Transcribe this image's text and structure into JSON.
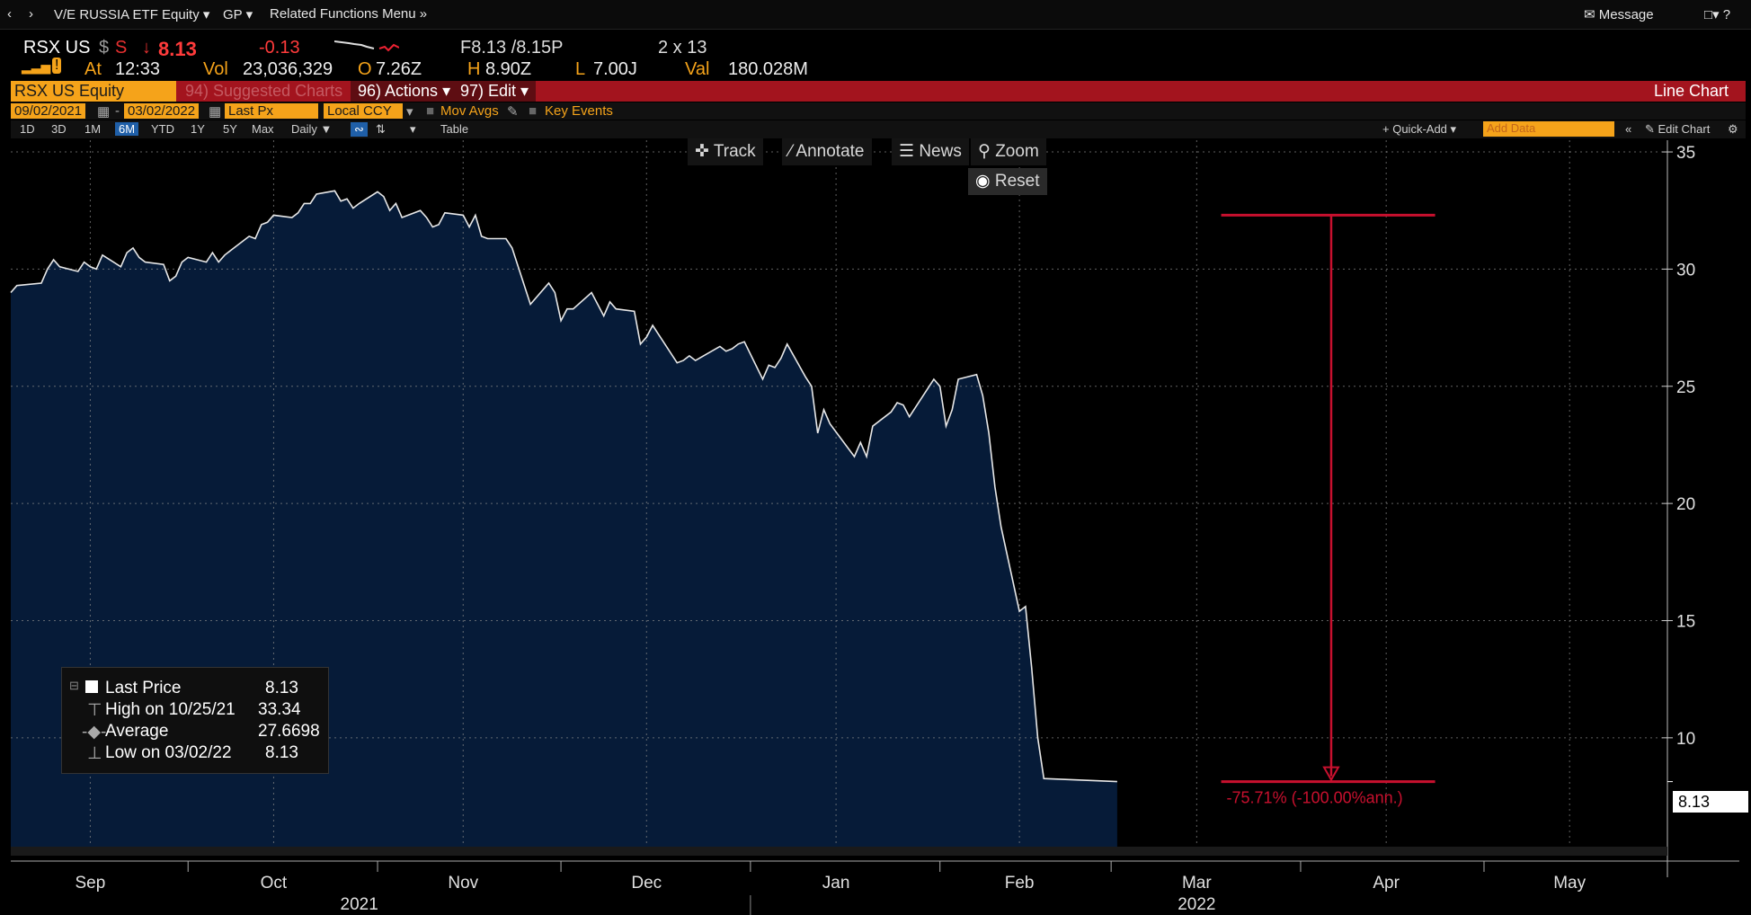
{
  "nav": {
    "back_icon": "chevron-left-icon",
    "forward_icon": "chevron-right-icon",
    "security_menu": "V/E RUSSIA ETF Equity",
    "function_menu": "GP",
    "related_menu": "Related Functions Menu",
    "message": "Message"
  },
  "quote": {
    "ticker": "RSX US",
    "currency": "$",
    "source": "S",
    "last": "8.13",
    "change": "-0.13",
    "bid_ask": "F8.13 /8.15P",
    "size": "2 x 13",
    "at_label": "At",
    "time": "12:33",
    "vol_label": "Vol",
    "volume": "23,036,329",
    "open_label": "O",
    "open": "7.26Z",
    "high_label": "H",
    "high": "8.90Z",
    "low_label": "L",
    "low": "7.00J",
    "val_label": "Val",
    "value": "180.028M"
  },
  "header": {
    "security": "RSX US Equity",
    "suggested": "94) Suggested Charts",
    "actions": "96) Actions",
    "edit": "97) Edit",
    "chart_type": "Line Chart"
  },
  "options": {
    "start_date": "09/02/2021",
    "end_date": "03/02/2022",
    "price_field": "Last Px",
    "currency": "Local CCY",
    "mov_avgs": "Mov Avgs",
    "key_events": "Key Events"
  },
  "range": {
    "buttons": [
      "1D",
      "3D",
      "1M",
      "6M",
      "YTD",
      "1Y",
      "5Y",
      "Max"
    ],
    "selected": "6M",
    "frequency": "Daily",
    "table": "Table",
    "quick_add": "Quick-Add",
    "add_data_placeholder": "Add Data",
    "edit_chart": "Edit Chart"
  },
  "toolbar": {
    "track": "Track",
    "annotate": "Annotate",
    "news": "News",
    "zoom": "Zoom",
    "reset": "Reset"
  },
  "legend": {
    "last_label": "Last Price",
    "last_value": "8.13",
    "high_label": "High on 10/25/21",
    "high_value": "33.34",
    "avg_label": "Average",
    "avg_value": "27.6698",
    "low_label": "Low on 03/02/22",
    "low_value": "8.13"
  },
  "measure_label": "-75.71% (-100.00%ann.)",
  "price_box": "8.13",
  "colors": {
    "fill": "#061b38",
    "line": "#e8e8e8",
    "measure": "#c8102e",
    "accent": "#f5a31a",
    "header": "#a3141e"
  },
  "chart_data": {
    "type": "area",
    "series": [
      {
        "name": "Last Price",
        "points": [
          [
            "2021-09-02",
            29.0
          ],
          [
            "2021-09-03",
            29.3
          ],
          [
            "2021-09-07",
            29.4
          ],
          [
            "2021-09-08",
            30.0
          ],
          [
            "2021-09-09",
            30.4
          ],
          [
            "2021-09-10",
            30.1
          ],
          [
            "2021-09-13",
            29.9
          ],
          [
            "2021-09-14",
            30.3
          ],
          [
            "2021-09-15",
            30.1
          ],
          [
            "2021-09-16",
            30.0
          ],
          [
            "2021-09-17",
            30.6
          ],
          [
            "2021-09-20",
            30.1
          ],
          [
            "2021-09-21",
            30.7
          ],
          [
            "2021-09-22",
            30.9
          ],
          [
            "2021-09-23",
            30.5
          ],
          [
            "2021-09-24",
            30.3
          ],
          [
            "2021-09-27",
            30.2
          ],
          [
            "2021-09-28",
            29.5
          ],
          [
            "2021-09-29",
            29.7
          ],
          [
            "2021-09-30",
            30.3
          ],
          [
            "2021-10-01",
            30.5
          ],
          [
            "2021-10-04",
            30.3
          ],
          [
            "2021-10-05",
            30.7
          ],
          [
            "2021-10-06",
            30.3
          ],
          [
            "2021-10-07",
            30.6
          ],
          [
            "2021-10-08",
            30.8
          ],
          [
            "2021-10-11",
            31.4
          ],
          [
            "2021-10-12",
            31.3
          ],
          [
            "2021-10-13",
            31.9
          ],
          [
            "2021-10-14",
            32.0
          ],
          [
            "2021-10-15",
            32.3
          ],
          [
            "2021-10-18",
            32.2
          ],
          [
            "2021-10-19",
            32.4
          ],
          [
            "2021-10-20",
            32.8
          ],
          [
            "2021-10-21",
            32.8
          ],
          [
            "2021-10-22",
            33.2
          ],
          [
            "2021-10-25",
            33.34
          ],
          [
            "2021-10-26",
            32.9
          ],
          [
            "2021-10-27",
            33.0
          ],
          [
            "2021-10-28",
            32.6
          ],
          [
            "2021-10-29",
            32.8
          ],
          [
            "2021-11-01",
            33.3
          ],
          [
            "2021-11-02",
            33.1
          ],
          [
            "2021-11-03",
            32.5
          ],
          [
            "2021-11-04",
            32.8
          ],
          [
            "2021-11-05",
            32.2
          ],
          [
            "2021-11-08",
            32.5
          ],
          [
            "2021-11-09",
            32.2
          ],
          [
            "2021-11-10",
            31.8
          ],
          [
            "2021-11-11",
            31.9
          ],
          [
            "2021-11-12",
            32.4
          ],
          [
            "2021-11-15",
            32.3
          ],
          [
            "2021-11-16",
            31.8
          ],
          [
            "2021-11-17",
            32.3
          ],
          [
            "2021-11-18",
            31.4
          ],
          [
            "2021-11-19",
            31.3
          ],
          [
            "2021-11-22",
            31.3
          ],
          [
            "2021-11-23",
            30.9
          ],
          [
            "2021-11-24",
            30.1
          ],
          [
            "2021-11-26",
            28.5
          ],
          [
            "2021-11-29",
            29.4
          ],
          [
            "2021-11-30",
            29.0
          ],
          [
            "2021-12-01",
            27.8
          ],
          [
            "2021-12-02",
            28.3
          ],
          [
            "2021-12-03",
            28.3
          ],
          [
            "2021-12-06",
            29.0
          ],
          [
            "2021-12-07",
            28.5
          ],
          [
            "2021-12-08",
            28.0
          ],
          [
            "2021-12-09",
            28.6
          ],
          [
            "2021-12-10",
            28.3
          ],
          [
            "2021-12-13",
            28.2
          ],
          [
            "2021-12-14",
            26.8
          ],
          [
            "2021-12-15",
            27.1
          ],
          [
            "2021-12-16",
            27.6
          ],
          [
            "2021-12-17",
            27.2
          ],
          [
            "2021-12-20",
            26.0
          ],
          [
            "2021-12-21",
            26.1
          ],
          [
            "2021-12-22",
            26.3
          ],
          [
            "2021-12-23",
            26.1
          ],
          [
            "2021-12-27",
            26.7
          ],
          [
            "2021-12-28",
            26.5
          ],
          [
            "2021-12-29",
            26.6
          ],
          [
            "2021-12-30",
            26.8
          ],
          [
            "2021-12-31",
            26.9
          ],
          [
            "2022-01-03",
            25.3
          ],
          [
            "2022-01-04",
            25.9
          ],
          [
            "2022-01-05",
            25.8
          ],
          [
            "2022-01-06",
            26.2
          ],
          [
            "2022-01-07",
            26.8
          ],
          [
            "2022-01-10",
            25.4
          ],
          [
            "2022-01-11",
            25.0
          ],
          [
            "2022-01-12",
            23.0
          ],
          [
            "2022-01-13",
            24.0
          ],
          [
            "2022-01-14",
            23.4
          ],
          [
            "2022-01-18",
            22.0
          ],
          [
            "2022-01-19",
            22.6
          ],
          [
            "2022-01-20",
            22.0
          ],
          [
            "2022-01-21",
            23.3
          ],
          [
            "2022-01-24",
            23.9
          ],
          [
            "2022-01-25",
            24.3
          ],
          [
            "2022-01-26",
            24.2
          ],
          [
            "2022-01-27",
            23.7
          ],
          [
            "2022-01-28",
            24.1
          ],
          [
            "2022-01-31",
            25.3
          ],
          [
            "2022-02-01",
            25.0
          ],
          [
            "2022-02-02",
            23.3
          ],
          [
            "2022-02-03",
            24.0
          ],
          [
            "2022-02-04",
            25.3
          ],
          [
            "2022-02-07",
            25.5
          ],
          [
            "2022-02-08",
            24.6
          ],
          [
            "2022-02-09",
            23.0
          ],
          [
            "2022-02-10",
            20.7
          ],
          [
            "2022-02-11",
            19.0
          ],
          [
            "2022-02-14",
            15.4
          ],
          [
            "2022-02-15",
            15.6
          ],
          [
            "2022-02-16",
            13.0
          ],
          [
            "2022-02-17",
            10.0
          ],
          [
            "2022-02-18",
            8.26
          ],
          [
            "2022-03-02",
            8.13
          ]
        ]
      }
    ],
    "x_ticks": [
      "Sep",
      "Oct",
      "Nov",
      "Dec",
      "Jan",
      "Feb",
      "Mar",
      "Apr",
      "May"
    ],
    "x_tick_dates": [
      "2021-09-15",
      "2021-10-15",
      "2021-11-15",
      "2021-12-15",
      "2022-01-15",
      "2022-02-14",
      "2022-03-15",
      "2022-04-15",
      "2022-05-15"
    ],
    "years": [
      "2021",
      "2022"
    ],
    "year_dates": [
      "2021-10-29",
      "2022-03-15"
    ],
    "y_ticks": [
      35,
      30,
      25,
      20,
      15,
      10
    ],
    "ylim": [
      5.2,
      35.5
    ],
    "xlim": [
      "2021-09-02",
      "2022-05-31"
    ],
    "grid": true,
    "measure": {
      "from": 32.3,
      "to": 8.13
    }
  }
}
